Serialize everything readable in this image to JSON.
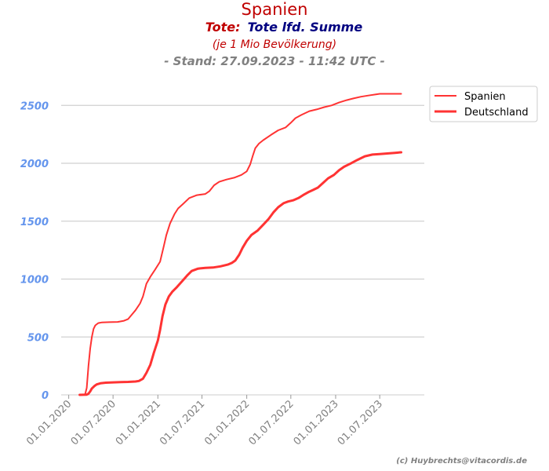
{
  "chart_data": {
    "type": "line",
    "title": "Spanien",
    "subtitle_part1": "Tote:",
    "subtitle_part2": "Tote lfd. Summe",
    "unit_note": "(je 1 Mio Bevölkerung)",
    "stand": "- Stand: 27.09.2023 - 11:42 UTC -",
    "credit": "(c) Huybrechts@vitacordis.de",
    "xlabel": "",
    "ylabel": "",
    "ylim": [
      0,
      2800
    ],
    "xlim": [
      "2019-12-01",
      "2023-12-31"
    ],
    "grid": "horizontal",
    "legend_position": "top-right",
    "y_ticks": [
      0,
      500,
      1000,
      1500,
      2000,
      2500
    ],
    "y_tick_labels": [
      "0",
      "500",
      "1000",
      "1500",
      "2000",
      "2500"
    ],
    "x_ticks": [
      "2020-01-01",
      "2020-07-01",
      "2021-01-01",
      "2021-07-01",
      "2022-01-01",
      "2022-07-01",
      "2023-01-01",
      "2023-07-01"
    ],
    "x_tick_labels": [
      "01.01.2020",
      "01.07.2020",
      "01.01.2021",
      "01.07.2021",
      "01.01.2022",
      "01.07.2022",
      "01.01.2023",
      "01.07.2023"
    ],
    "series": [
      {
        "name": "Spanien",
        "color": "#ff3333",
        "points": [
          [
            "2020-02-15",
            0
          ],
          [
            "2020-03-08",
            2
          ],
          [
            "2020-03-15",
            60
          ],
          [
            "2020-03-22",
            250
          ],
          [
            "2020-03-29",
            400
          ],
          [
            "2020-04-05",
            500
          ],
          [
            "2020-04-12",
            570
          ],
          [
            "2020-04-19",
            600
          ],
          [
            "2020-05-01",
            620
          ],
          [
            "2020-05-15",
            625
          ],
          [
            "2020-06-15",
            628
          ],
          [
            "2020-07-20",
            630
          ],
          [
            "2020-08-15",
            640
          ],
          [
            "2020-09-01",
            655
          ],
          [
            "2020-09-15",
            690
          ],
          [
            "2020-10-01",
            730
          ],
          [
            "2020-10-20",
            790
          ],
          [
            "2020-11-01",
            850
          ],
          [
            "2020-11-15",
            960
          ],
          [
            "2020-12-01",
            1020
          ],
          [
            "2020-12-20",
            1080
          ],
          [
            "2021-01-10",
            1150
          ],
          [
            "2021-01-25",
            1280
          ],
          [
            "2021-02-05",
            1380
          ],
          [
            "2021-02-20",
            1480
          ],
          [
            "2021-03-10",
            1560
          ],
          [
            "2021-03-25",
            1610
          ],
          [
            "2021-04-15",
            1650
          ],
          [
            "2021-05-10",
            1700
          ],
          [
            "2021-06-10",
            1725
          ],
          [
            "2021-07-15",
            1735
          ],
          [
            "2021-08-01",
            1760
          ],
          [
            "2021-08-20",
            1810
          ],
          [
            "2021-09-10",
            1840
          ],
          [
            "2021-10-10",
            1860
          ],
          [
            "2021-11-10",
            1875
          ],
          [
            "2021-12-10",
            1900
          ],
          [
            "2022-01-01",
            1930
          ],
          [
            "2022-01-15",
            1990
          ],
          [
            "2022-01-25",
            2060
          ],
          [
            "2022-02-05",
            2130
          ],
          [
            "2022-02-20",
            2170
          ],
          [
            "2022-03-10",
            2200
          ],
          [
            "2022-04-10",
            2245
          ],
          [
            "2022-05-10",
            2285
          ],
          [
            "2022-06-10",
            2310
          ],
          [
            "2022-07-01",
            2350
          ],
          [
            "2022-07-20",
            2390
          ],
          [
            "2022-08-15",
            2420
          ],
          [
            "2022-09-15",
            2450
          ],
          [
            "2022-10-15",
            2465
          ],
          [
            "2022-11-15",
            2485
          ],
          [
            "2022-12-15",
            2500
          ],
          [
            "2023-01-15",
            2525
          ],
          [
            "2023-02-15",
            2545
          ],
          [
            "2023-03-15",
            2560
          ],
          [
            "2023-04-15",
            2575
          ],
          [
            "2023-05-15",
            2585
          ],
          [
            "2023-06-15",
            2595
          ],
          [
            "2023-07-01",
            2600
          ],
          [
            "2023-08-01",
            2600
          ],
          [
            "2023-09-27",
            2600
          ]
        ]
      },
      {
        "name": "Deutschland",
        "color": "#ff3333",
        "points": [
          [
            "2020-02-15",
            0
          ],
          [
            "2020-03-15",
            2
          ],
          [
            "2020-03-22",
            10
          ],
          [
            "2020-03-29",
            30
          ],
          [
            "2020-04-05",
            55
          ],
          [
            "2020-04-15",
            75
          ],
          [
            "2020-04-25",
            90
          ],
          [
            "2020-05-10",
            100
          ],
          [
            "2020-06-01",
            105
          ],
          [
            "2020-07-01",
            108
          ],
          [
            "2020-08-01",
            110
          ],
          [
            "2020-09-01",
            112
          ],
          [
            "2020-10-01",
            115
          ],
          [
            "2020-10-15",
            120
          ],
          [
            "2020-11-01",
            140
          ],
          [
            "2020-11-15",
            190
          ],
          [
            "2020-12-01",
            260
          ],
          [
            "2020-12-15",
            360
          ],
          [
            "2021-01-01",
            470
          ],
          [
            "2021-01-10",
            560
          ],
          [
            "2021-01-20",
            680
          ],
          [
            "2021-02-01",
            780
          ],
          [
            "2021-02-15",
            850
          ],
          [
            "2021-03-01",
            890
          ],
          [
            "2021-03-20",
            930
          ],
          [
            "2021-04-10",
            980
          ],
          [
            "2021-05-01",
            1030
          ],
          [
            "2021-05-20",
            1070
          ],
          [
            "2021-06-15",
            1090
          ],
          [
            "2021-07-15",
            1097
          ],
          [
            "2021-08-15",
            1100
          ],
          [
            "2021-09-15",
            1110
          ],
          [
            "2021-10-15",
            1125
          ],
          [
            "2021-11-01",
            1140
          ],
          [
            "2021-11-15",
            1160
          ],
          [
            "2021-12-01",
            1210
          ],
          [
            "2021-12-15",
            1270
          ],
          [
            "2022-01-01",
            1330
          ],
          [
            "2022-01-20",
            1380
          ],
          [
            "2022-02-15",
            1420
          ],
          [
            "2022-03-10",
            1470
          ],
          [
            "2022-04-01",
            1520
          ],
          [
            "2022-04-20",
            1575
          ],
          [
            "2022-05-10",
            1620
          ],
          [
            "2022-06-01",
            1655
          ],
          [
            "2022-06-20",
            1670
          ],
          [
            "2022-07-10",
            1680
          ],
          [
            "2022-08-01",
            1700
          ],
          [
            "2022-08-20",
            1725
          ],
          [
            "2022-09-10",
            1750
          ],
          [
            "2022-10-01",
            1770
          ],
          [
            "2022-10-20",
            1790
          ],
          [
            "2022-11-10",
            1830
          ],
          [
            "2022-12-01",
            1870
          ],
          [
            "2022-12-25",
            1900
          ],
          [
            "2023-01-15",
            1940
          ],
          [
            "2023-02-05",
            1970
          ],
          [
            "2023-03-01",
            1995
          ],
          [
            "2023-04-01",
            2030
          ],
          [
            "2023-05-01",
            2060
          ],
          [
            "2023-06-01",
            2075
          ],
          [
            "2023-07-01",
            2080
          ],
          [
            "2023-08-01",
            2085
          ],
          [
            "2023-09-01",
            2090
          ],
          [
            "2023-09-27",
            2095
          ]
        ]
      }
    ]
  }
}
